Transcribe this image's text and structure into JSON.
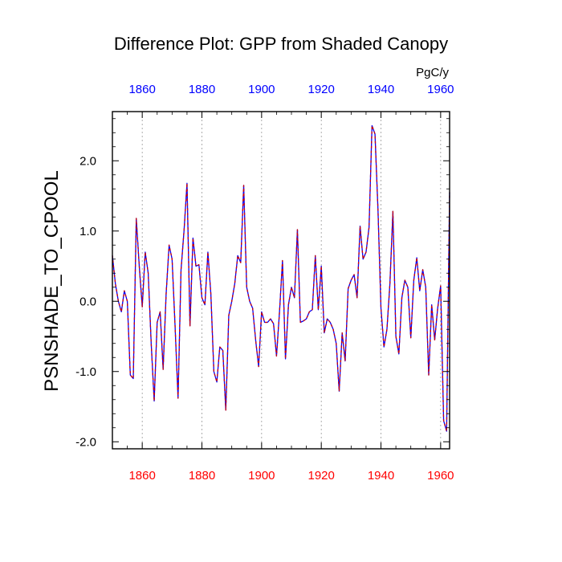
{
  "chart_data": {
    "type": "line",
    "title": "Difference Plot: GPP from Shaded Canopy",
    "units": "PgC/y",
    "ylabel": "PSNSHADE_TO_CPOOL",
    "xlabel": "",
    "xlim": [
      1850,
      1963
    ],
    "ylim": [
      -2.1,
      2.7
    ],
    "grid": "vertical dotted at major x ticks",
    "x_ticks": [
      1860,
      1880,
      1900,
      1920,
      1940,
      1960
    ],
    "x_tick_labels": [
      "1860",
      "1880",
      "1900",
      "1920",
      "1940",
      "1960"
    ],
    "y_ticks": [
      -2,
      -1,
      0,
      1,
      2
    ],
    "y_tick_labels": [
      "-2.0",
      "-1.0",
      "0.0",
      "1.0",
      "2.0"
    ],
    "colors": {
      "line_primary": "#0000ff",
      "line_dash": "#cc0000",
      "bottom_tick_labels": "#ff0000",
      "top_tick_labels": "#0000ff",
      "grid": "#999999",
      "frame": "#000000"
    },
    "series": [
      {
        "name": "PSNSHADE_TO_CPOOL",
        "x": [
          1850,
          1851,
          1852,
          1853,
          1854,
          1855,
          1856,
          1857,
          1858,
          1859,
          1860,
          1861,
          1862,
          1863,
          1864,
          1865,
          1866,
          1867,
          1868,
          1869,
          1870,
          1871,
          1872,
          1873,
          1874,
          1875,
          1876,
          1877,
          1878,
          1879,
          1880,
          1881,
          1882,
          1883,
          1884,
          1885,
          1886,
          1887,
          1888,
          1889,
          1890,
          1891,
          1892,
          1893,
          1894,
          1895,
          1896,
          1897,
          1898,
          1899,
          1900,
          1901,
          1902,
          1903,
          1904,
          1905,
          1906,
          1907,
          1908,
          1909,
          1910,
          1911,
          1912,
          1913,
          1914,
          1915,
          1916,
          1917,
          1918,
          1919,
          1920,
          1921,
          1922,
          1923,
          1924,
          1925,
          1926,
          1927,
          1928,
          1929,
          1930,
          1931,
          1932,
          1933,
          1934,
          1935,
          1936,
          1937,
          1938,
          1939,
          1940,
          1941,
          1942,
          1943,
          1944,
          1945,
          1946,
          1947,
          1948,
          1949,
          1950,
          1951,
          1952,
          1953,
          1954,
          1955,
          1956,
          1957,
          1958,
          1959,
          1960,
          1961,
          1962,
          1963
        ],
        "values": [
          0.65,
          0.25,
          0.0,
          -0.15,
          0.15,
          0.0,
          -1.05,
          -1.1,
          1.18,
          0.5,
          -0.08,
          0.7,
          0.4,
          -0.6,
          -1.42,
          -0.3,
          -0.15,
          -0.97,
          0.1,
          0.8,
          0.6,
          -0.35,
          -1.38,
          0.45,
          1.0,
          1.68,
          -0.35,
          0.9,
          0.5,
          0.52,
          0.05,
          -0.05,
          0.7,
          0.1,
          -1.0,
          -1.15,
          -0.65,
          -0.7,
          -1.55,
          -0.2,
          0.0,
          0.25,
          0.65,
          0.55,
          1.65,
          0.2,
          0.0,
          -0.1,
          -0.55,
          -0.93,
          -0.15,
          -0.3,
          -0.3,
          -0.25,
          -0.32,
          -0.78,
          -0.15,
          0.58,
          -0.82,
          -0.05,
          0.2,
          0.05,
          1.02,
          -0.3,
          -0.28,
          -0.25,
          -0.15,
          -0.12,
          0.65,
          -0.12,
          0.5,
          -0.45,
          -0.25,
          -0.3,
          -0.4,
          -0.6,
          -1.28,
          -0.45,
          -0.85,
          0.18,
          0.3,
          0.38,
          0.05,
          1.07,
          0.6,
          0.7,
          1.05,
          2.5,
          2.38,
          1.3,
          -0.1,
          -0.65,
          -0.4,
          0.25,
          1.28,
          -0.5,
          -0.75,
          0.05,
          0.3,
          0.2,
          -0.52,
          0.3,
          0.62,
          0.15,
          0.45,
          0.2,
          -1.05,
          -0.05,
          -0.55,
          -0.1,
          0.22,
          -1.7,
          -1.85,
          1.55
        ]
      }
    ]
  }
}
